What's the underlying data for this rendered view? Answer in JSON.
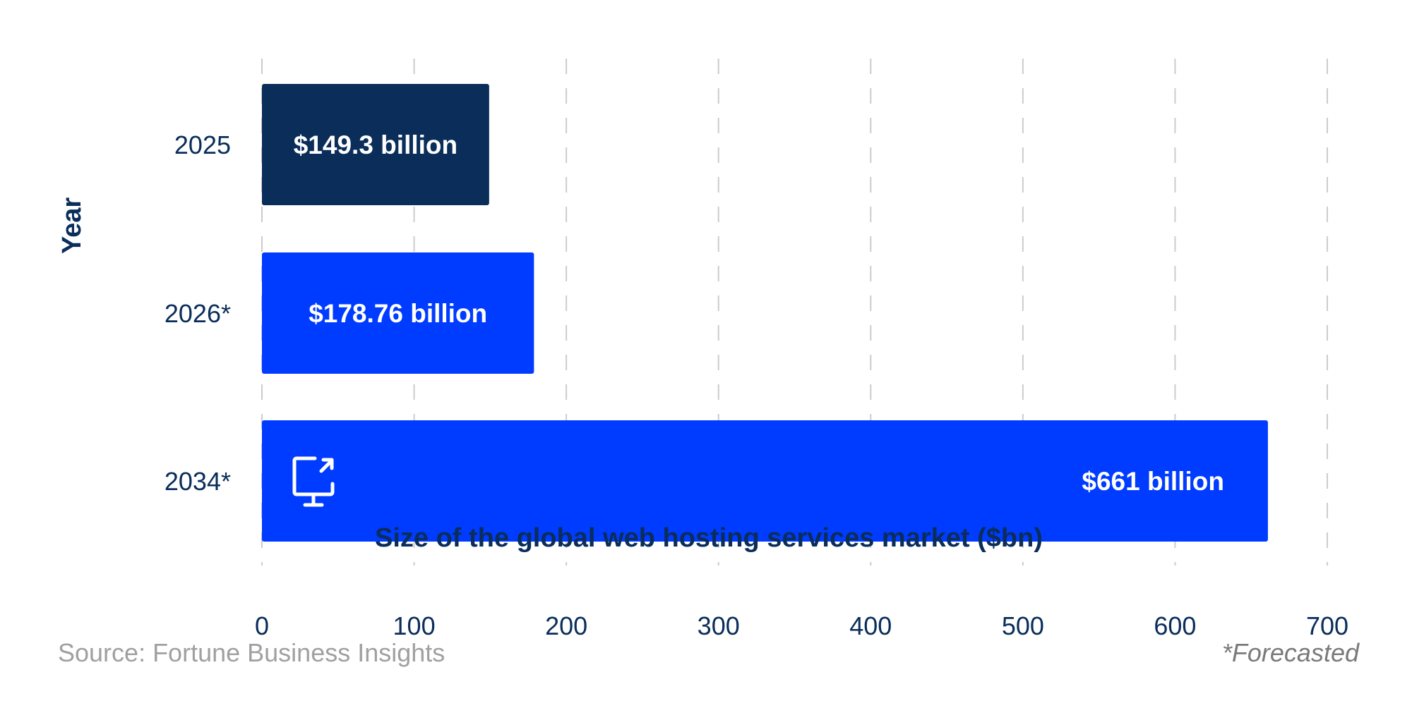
{
  "chart_data": {
    "type": "bar",
    "orientation": "horizontal",
    "categories": [
      "2025",
      "2026*",
      "2034*"
    ],
    "values": [
      149.3,
      178.76,
      661
    ],
    "data_labels": [
      "$149.3 billion",
      "$178.76 billion",
      "$661 billion"
    ],
    "bar_colors": [
      "#0a2d5a",
      "#003cff",
      "#003cff"
    ],
    "xlabel": "Size of the global web hosting services market ($bn)",
    "ylabel": "Year",
    "xlim": [
      0,
      700
    ],
    "xticks": [
      "0",
      "100",
      "200",
      "300",
      "400",
      "500",
      "600",
      "700"
    ],
    "grid": "vertical dashed",
    "icon": "monitor-share-icon"
  },
  "footer": {
    "source": "Source: Fortune Business Insights",
    "note": "*Forecasted"
  },
  "colors": {
    "text": "#0a2d5a",
    "grid": "#cccccc",
    "footer": "#a0a0a0"
  }
}
